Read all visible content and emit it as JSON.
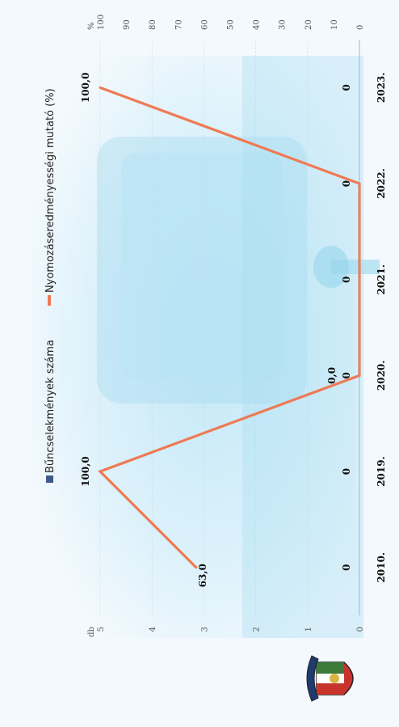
{
  "chart_data": {
    "type": "bar+line",
    "categories": [
      "2010.",
      "2019.",
      "2020.",
      "2021.",
      "2022.",
      "2023."
    ],
    "series": [
      {
        "name": "Bűncselekmények száma",
        "type": "bar",
        "axis": "left",
        "values": [
          0,
          0,
          0,
          0,
          0,
          0
        ],
        "value_labels": [
          "0",
          "0",
          "0",
          "0",
          "0",
          "0"
        ]
      },
      {
        "name": "Nyomozáseredményességi mutató (%)",
        "type": "line",
        "axis": "right",
        "values": [
          63.0,
          100.0,
          0.0,
          null,
          0.0,
          100.0
        ],
        "value_labels": [
          "63,0",
          "100,0",
          "0,0",
          "",
          "",
          "100,0"
        ]
      }
    ],
    "left_axis": {
      "unit": "db",
      "range": [
        0,
        5
      ],
      "ticks": [
        "0",
        "1",
        "2",
        "3",
        "4",
        "5"
      ]
    },
    "right_axis": {
      "unit": "%",
      "range": [
        0,
        100
      ],
      "ticks": [
        "0",
        "10",
        "20",
        "30",
        "40",
        "50",
        "60",
        "70",
        "80",
        "90",
        "100"
      ]
    },
    "legend_placement": "top",
    "colors": {
      "bar": "#3c5a8a",
      "line": "#ee7a55"
    }
  }
}
